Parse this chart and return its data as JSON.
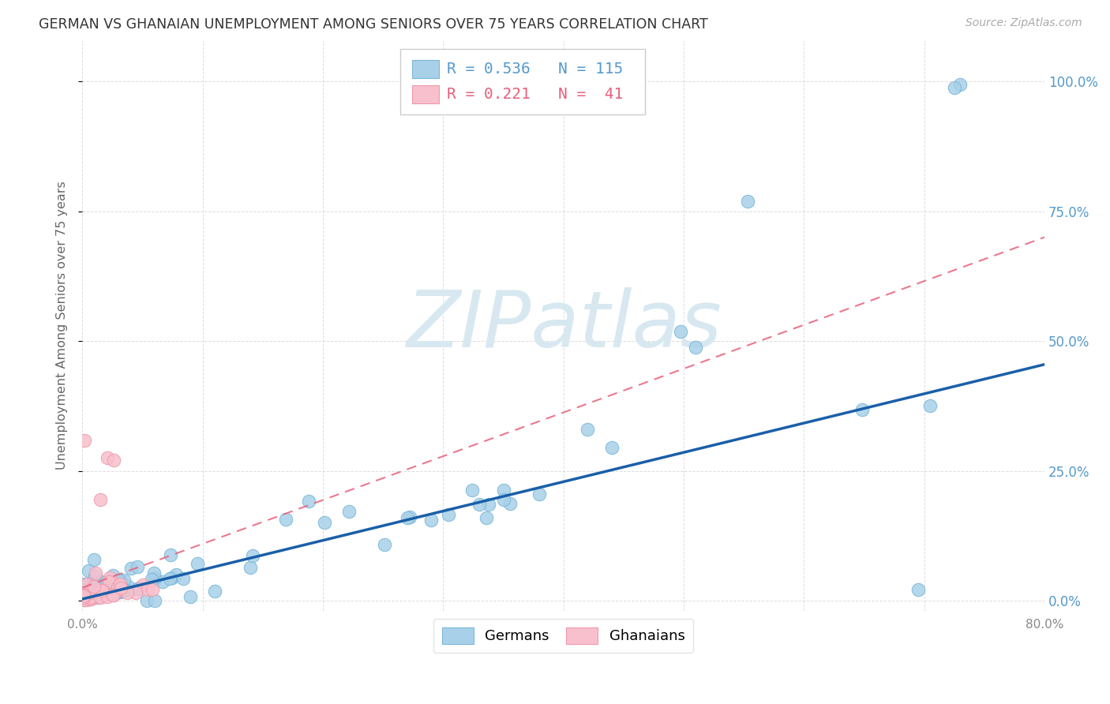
{
  "title": "GERMAN VS GHANAIAN UNEMPLOYMENT AMONG SENIORS OVER 75 YEARS CORRELATION CHART",
  "source": "Source: ZipAtlas.com",
  "ylabel": "Unemployment Among Seniors over 75 years",
  "xlim": [
    0.0,
    0.8
  ],
  "ylim": [
    -0.02,
    1.08
  ],
  "ytick_vals": [
    0.0,
    0.25,
    0.5,
    0.75,
    1.0
  ],
  "xtick_vals": [
    0.0,
    0.1,
    0.2,
    0.3,
    0.4,
    0.5,
    0.6,
    0.7,
    0.8
  ],
  "legend_R": [
    0.536,
    0.221
  ],
  "legend_N": [
    115,
    41
  ],
  "blue_color": "#a8d0e8",
  "blue_edge_color": "#7ab8d9",
  "pink_color": "#f7c0cc",
  "pink_edge_color": "#f09aad",
  "blue_line_color": "#1a5fa8",
  "pink_line_color": "#e8607a",
  "watermark_color": "#d8e8f0",
  "background_color": "#ffffff",
  "grid_color": "#c8c8c8",
  "title_color": "#333333",
  "axis_label_color": "#666666",
  "right_tick_color": "#5599cc",
  "watermark": "ZIPatlas",
  "german_line_x0": 0.0,
  "german_line_y0": 0.003,
  "german_line_x1": 0.8,
  "german_line_y1": 0.455,
  "pink_line_x0": 0.0,
  "pink_line_y0": 0.025,
  "pink_line_x1": 0.8,
  "pink_line_y1": 0.7
}
